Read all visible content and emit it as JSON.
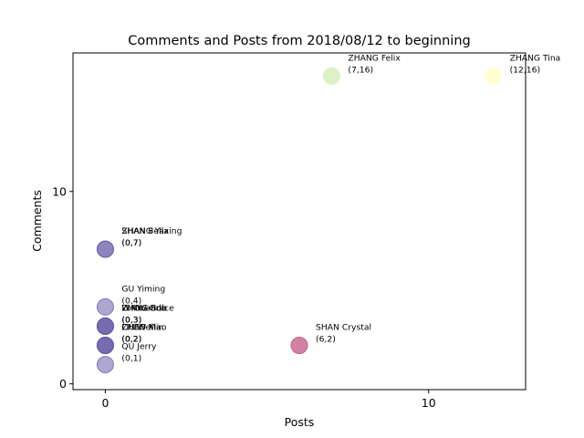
{
  "chart_data": {
    "type": "scatter",
    "title": "Comments and Posts from 2018/08/12 to beginning",
    "xlabel": "Posts",
    "ylabel": "Comments",
    "xlim": [
      -1,
      13
    ],
    "ylim": [
      -0.3,
      17.2
    ],
    "xticks": [
      0,
      10
    ],
    "yticks": [
      0,
      10
    ],
    "grid": false,
    "points": [
      {
        "name": "ZHANG Tina",
        "label": "(12,16)",
        "x": 12,
        "y": 16,
        "color": "#ffffcc",
        "opacity": 0.9
      },
      {
        "name": "ZHANG Felix",
        "label": "(7,16)",
        "x": 7,
        "y": 16,
        "color": "#d9f0c0",
        "opacity": 0.9
      },
      {
        "name": "SHAN Crystal",
        "label": "(6,2)",
        "x": 6,
        "y": 2,
        "color": "#c05a85",
        "opacity": 0.75
      },
      {
        "name": "ZHANG Yaxing",
        "label": "(0,7)",
        "x": 0,
        "y": 7,
        "color": "#5e4fa2",
        "opacity": 0.45
      },
      {
        "name": "SHAN Bella",
        "label": "(0,7)",
        "x": 0,
        "y": 7,
        "color": "#5e4fa2",
        "opacity": 0.45
      },
      {
        "name": "GU Yiming",
        "label": "(0,4)",
        "x": 0,
        "y": 4,
        "color": "#5e4fa2",
        "opacity": 0.5
      },
      {
        "name": "LI Amanda",
        "label": "(0,3)",
        "x": 0,
        "y": 3,
        "color": "#5e4fa2",
        "opacity": 0.45
      },
      {
        "name": "WANG Bob",
        "label": "(0,3)",
        "x": 0,
        "y": 3,
        "color": "#5e4fa2",
        "opacity": 0.45
      },
      {
        "name": "ZHOU Grace",
        "label": "(0,3)",
        "x": 0,
        "y": 3,
        "color": "#5e4fa2",
        "opacity": 0.45
      },
      {
        "name": "CHEN Xiao",
        "label": "(0,2)",
        "x": 0,
        "y": 2,
        "color": "#5e4fa2",
        "opacity": 0.45
      },
      {
        "name": "LIU Wei",
        "label": "(0,2)",
        "x": 0,
        "y": 2,
        "color": "#5e4fa2",
        "opacity": 0.45
      },
      {
        "name": "ZHAO Min",
        "label": "(0,2)",
        "x": 0,
        "y": 2,
        "color": "#5e4fa2",
        "opacity": 0.45
      },
      {
        "name": "QU Jerry",
        "label": "(0,1)",
        "x": 0,
        "y": 1,
        "color": "#5e4fa2",
        "opacity": 0.5
      }
    ]
  }
}
